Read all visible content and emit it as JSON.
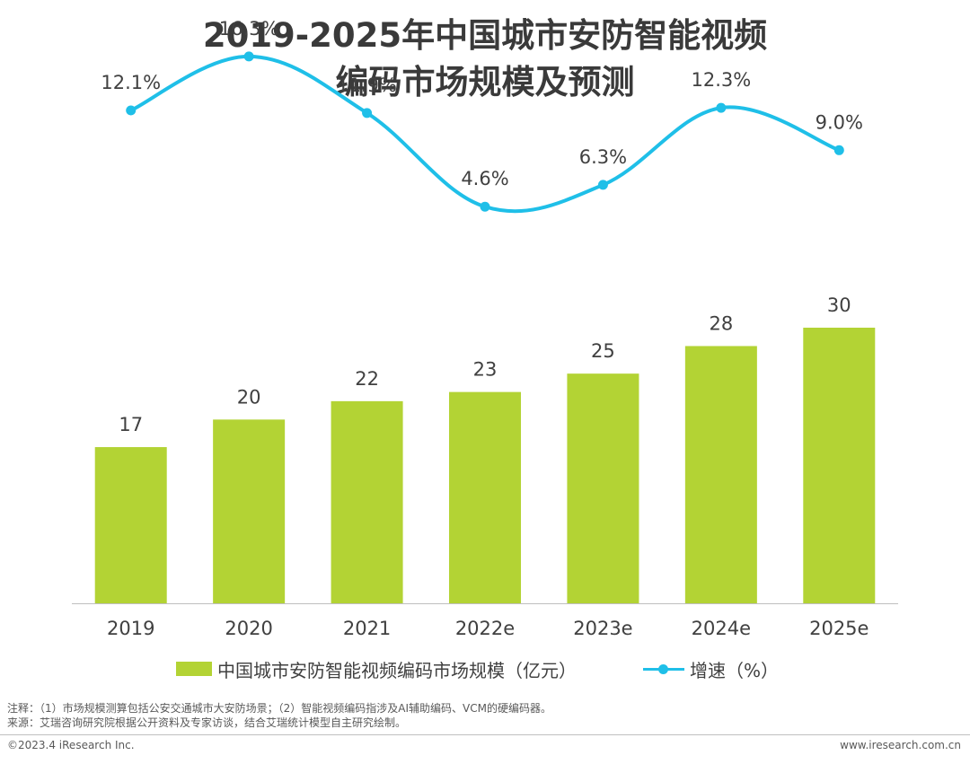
{
  "title_line1": "2019-2025年中国城市安防智能视频",
  "title_line2": "编码市场规模及预测",
  "chart_data": {
    "type": "bar",
    "categories": [
      "2019",
      "2020",
      "2021",
      "2022e",
      "2023e",
      "2024e",
      "2025e"
    ],
    "series": [
      {
        "name": "中国城市安防智能视频编码市场规模（亿元）",
        "type": "bar",
        "values": [
          17,
          20,
          22,
          23,
          25,
          28,
          30
        ],
        "color": "#b3d334"
      },
      {
        "name": "增速（%）",
        "type": "line",
        "values": [
          12.1,
          16.3,
          11.9,
          4.6,
          6.3,
          12.3,
          9.0
        ],
        "labels": [
          "12.1%",
          "16.3%",
          "11.9%",
          "4.6%",
          "6.3%",
          "12.3%",
          "9.0%"
        ],
        "color": "#1fbfe8"
      }
    ],
    "legend_position": "bottom",
    "grid": false
  },
  "notes_line1": "注释：（1）市场规模测算包括公安交通城市大安防场景；（2）智能视频编码指涉及AI辅助编码、VCM的硬编码器。",
  "notes_line2": "来源：艾瑞咨询研究院根据公开资料及专家访谈，结合艾瑞统计模型自主研究绘制。",
  "copyright": "©2023.4 iResearch Inc.",
  "website": "www.iresearch.com.cn"
}
